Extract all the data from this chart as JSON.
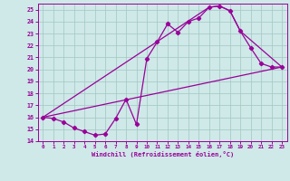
{
  "title": "",
  "xlabel": "Windchill (Refroidissement éolien,°C)",
  "ylabel": "",
  "bg_color": "#cfe8e8",
  "grid_color": "#a0c8c0",
  "line_color": "#990099",
  "xlim": [
    -0.5,
    23.5
  ],
  "ylim": [
    14,
    25.5
  ],
  "xticks": [
    0,
    1,
    2,
    3,
    4,
    5,
    6,
    7,
    8,
    9,
    10,
    11,
    12,
    13,
    14,
    15,
    16,
    17,
    18,
    19,
    20,
    21,
    22,
    23
  ],
  "yticks": [
    14,
    15,
    16,
    17,
    18,
    19,
    20,
    21,
    22,
    23,
    24,
    25
  ],
  "line1_x": [
    0,
    1,
    2,
    3,
    4,
    5,
    6,
    7,
    8,
    9,
    10,
    11,
    12,
    13,
    14,
    15,
    16,
    17,
    18,
    19,
    20,
    21,
    22,
    23
  ],
  "line1_y": [
    16.0,
    15.9,
    15.6,
    15.1,
    14.8,
    14.5,
    14.6,
    15.9,
    17.5,
    15.4,
    20.9,
    22.3,
    23.8,
    23.1,
    24.0,
    24.3,
    25.2,
    25.3,
    24.9,
    23.2,
    21.8,
    20.5,
    20.2,
    20.2
  ],
  "line2_x": [
    0,
    16,
    17,
    18,
    19,
    23
  ],
  "line2_y": [
    16.0,
    25.2,
    25.3,
    24.9,
    23.2,
    20.2
  ],
  "line3_x": [
    0,
    23
  ],
  "line3_y": [
    16.0,
    20.2
  ],
  "markersize": 2.2,
  "linewidth": 0.9
}
